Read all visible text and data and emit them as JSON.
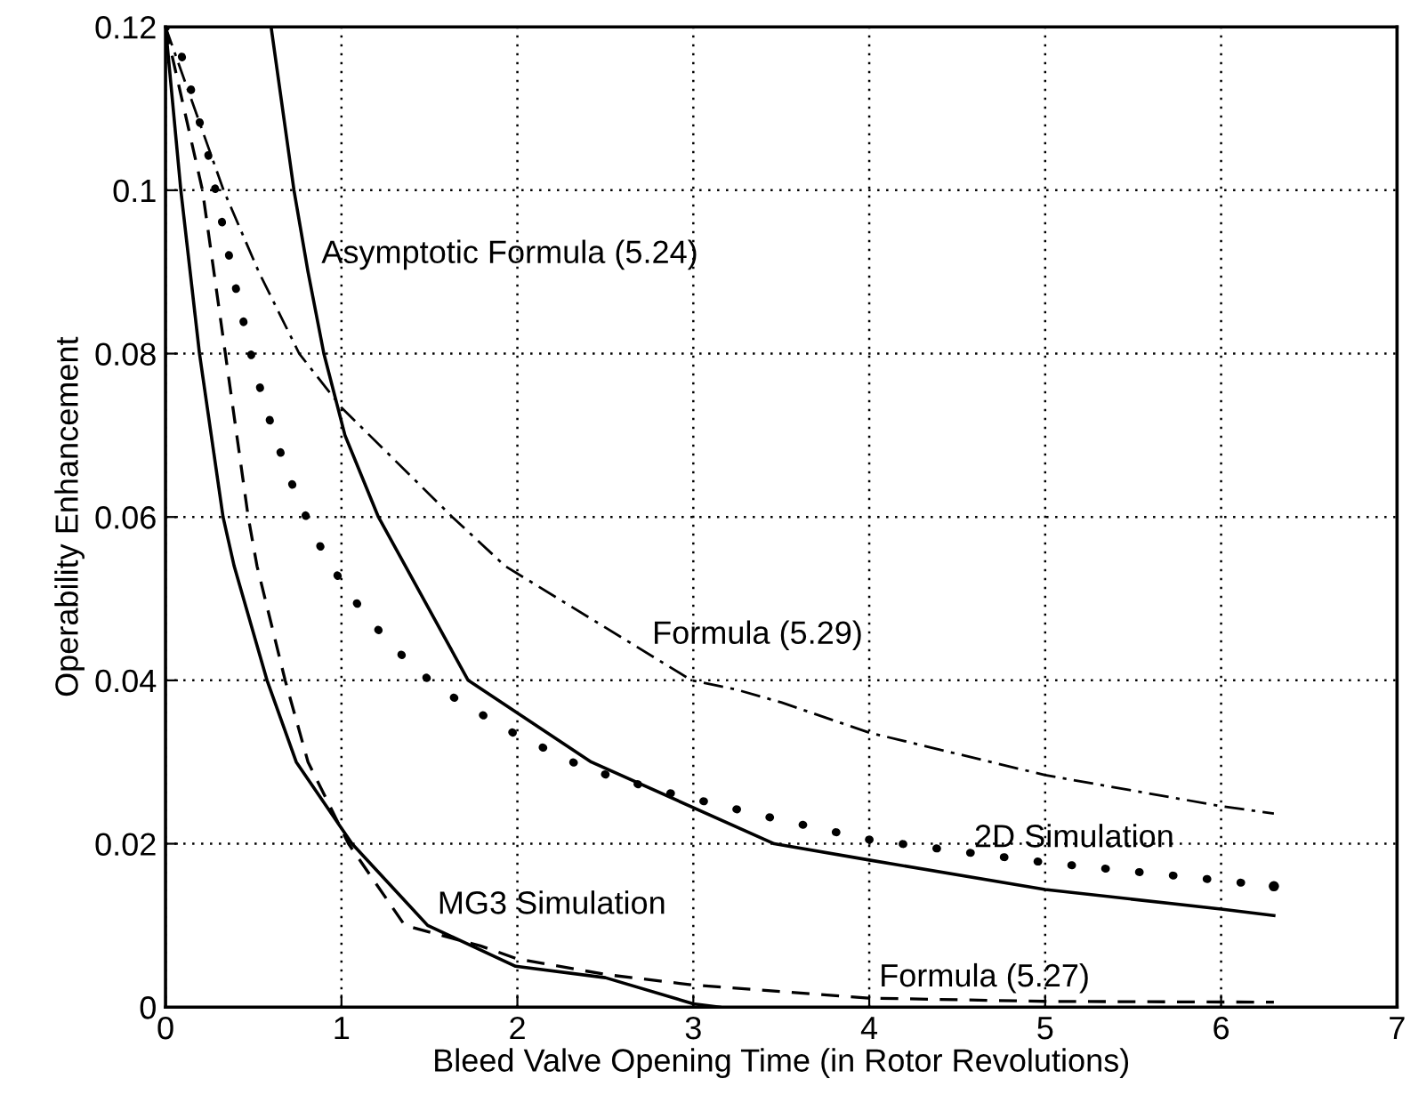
{
  "chart_data": {
    "type": "line",
    "xlabel": "Bleed Valve Opening Time (in Rotor Revolutions)",
    "ylabel": "Operability Enhancement",
    "xlim": [
      0,
      7
    ],
    "ylim": [
      0,
      0.12
    ],
    "xticks": [
      0,
      1,
      2,
      3,
      4,
      5,
      6,
      7
    ],
    "yticks": [
      0,
      0.02,
      0.04,
      0.06,
      0.08,
      0.1,
      0.12
    ],
    "grid": true,
    "legend": false,
    "series": [
      {
        "color": "#000000",
        "line_style": "solid",
        "x": [
          0.6,
          0.73,
          0.81,
          0.9,
          1.02,
          1.21,
          1.72,
          2.42,
          3.46,
          4,
          5,
          6,
          6.3
        ],
        "values": [
          0.12,
          0.1,
          0.09,
          0.08,
          0.07,
          0.06,
          0.04,
          0.03,
          0.02,
          0.018,
          0.0144,
          0.012,
          0.0112
        ]
      },
      {
        "color": "#000000",
        "line_style": "dashdot",
        "x": [
          0,
          0.33,
          0.53,
          0.76,
          1,
          1.63,
          1.93,
          2.99,
          3.24,
          3.5,
          4,
          5,
          6,
          6.3
        ],
        "values": [
          0.12,
          0.1,
          0.09,
          0.08,
          0.0734,
          0.06,
          0.054,
          0.04,
          0.0389,
          0.0373,
          0.0336,
          0.0284,
          0.0246,
          0.0237
        ]
      },
      {
        "color": "#000000",
        "line_style": "dotted",
        "x": [
          0,
          0.087,
          0.153,
          0.243,
          0.32,
          0.4,
          0.48,
          0.56,
          0.64,
          0.72,
          0.8,
          0.88,
          0.96,
          1.04,
          1.12,
          1.2,
          1.36,
          1.52,
          1.68,
          1.99,
          2.39,
          2.79,
          3.46,
          4,
          5,
          6,
          6.3
        ],
        "values": [
          0.12,
          0.1168,
          0.1117,
          0.1043,
          0.0962,
          0.088,
          0.0804,
          0.074,
          0.0687,
          0.064,
          0.06,
          0.0564,
          0.0534,
          0.0508,
          0.0485,
          0.0464,
          0.0427,
          0.0396,
          0.0373,
          0.0334,
          0.0292,
          0.0266,
          0.0231,
          0.0205,
          0.0177,
          0.0155,
          0.0148
        ]
      },
      {
        "color": "#000000",
        "line_style": "solid",
        "x": [
          0,
          0.087,
          0.193,
          0.327,
          0.39,
          0.577,
          0.743,
          1.06,
          1.49,
          1.99,
          2.5,
          3,
          3.15
        ],
        "values": [
          0.12,
          0.1,
          0.08,
          0.06,
          0.054,
          0.04,
          0.03,
          0.02,
          0.01,
          0.005,
          0.0036,
          0.0004,
          0
        ]
      },
      {
        "color": "#000000",
        "line_style": "dashed",
        "x": [
          0,
          0.21,
          0.34,
          0.47,
          0.52,
          0.68,
          0.81,
          1.04,
          1.36,
          1.79,
          2,
          2.5,
          3,
          4,
          5,
          6.3
        ],
        "values": [
          0.12,
          0.1,
          0.08,
          0.06,
          0.054,
          0.04,
          0.03,
          0.02,
          0.01,
          0.0075,
          0.0059,
          0.004,
          0.0027,
          0.0011,
          0.0007,
          0.0006
        ]
      }
    ],
    "annotations": [
      {
        "text": "Asymptotic Formula (5.24)",
        "x": 0.83,
        "y": 0.0915
      },
      {
        "text": "Formula (5.29)",
        "x": 2.71,
        "y": 0.0449
      },
      {
        "text": "2D Simulation",
        "x": 4.54,
        "y": 0.02
      },
      {
        "text": "MG3 Simulation",
        "x": 1.49,
        "y": 0.01
      },
      {
        "text": "Formula (5.27)",
        "x": 4,
        "y": 0.0011
      }
    ]
  }
}
